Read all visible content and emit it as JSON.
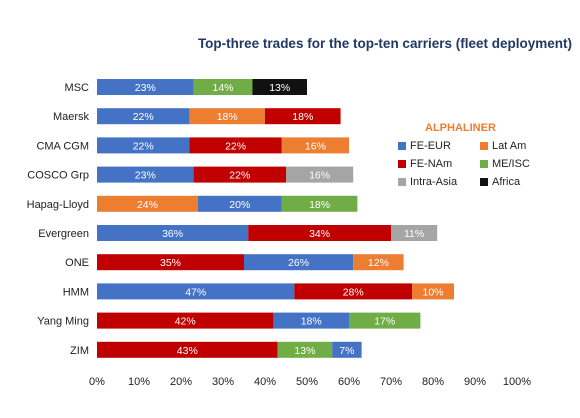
{
  "chart_data": {
    "type": "bar",
    "orientation": "horizontal",
    "stacked": true,
    "title": "Top-three trades for the top-ten carriers (fleet deployment)",
    "brand": "ALPHALINER",
    "categories": [
      "MSC",
      "Maersk",
      "CMA CGM",
      "COSCO Grp",
      "Hapag-Lloyd",
      "Evergreen",
      "ONE",
      "HMM",
      "Yang Ming",
      "ZIM"
    ],
    "series": [
      {
        "name": "FE-EUR",
        "color": "#4472c4"
      },
      {
        "name": "Lat Am",
        "color": "#ed7d31"
      },
      {
        "name": "FE-NAm",
        "color": "#c00000"
      },
      {
        "name": "ME/ISC",
        "color": "#70ad47"
      },
      {
        "name": "Intra-Asia",
        "color": "#a5a5a5"
      },
      {
        "name": "Africa",
        "color": "#111111"
      }
    ],
    "bars": [
      {
        "carrier": "MSC",
        "segments": [
          {
            "trade": "FE-EUR",
            "value": 23,
            "label": "23%"
          },
          {
            "trade": "ME/ISC",
            "value": 14,
            "label": "14%"
          },
          {
            "trade": "Africa",
            "value": 13,
            "label": "13%"
          }
        ]
      },
      {
        "carrier": "Maersk",
        "segments": [
          {
            "trade": "FE-EUR",
            "value": 22,
            "label": "22%"
          },
          {
            "trade": "Lat Am",
            "value": 18,
            "label": "18%"
          },
          {
            "trade": "FE-NAm",
            "value": 18,
            "label": "18%"
          }
        ]
      },
      {
        "carrier": "CMA CGM",
        "segments": [
          {
            "trade": "FE-EUR",
            "value": 22,
            "label": "22%"
          },
          {
            "trade": "FE-NAm",
            "value": 22,
            "label": "22%"
          },
          {
            "trade": "Lat Am",
            "value": 16,
            "label": "16%"
          }
        ]
      },
      {
        "carrier": "COSCO Grp",
        "segments": [
          {
            "trade": "FE-EUR",
            "value": 23,
            "label": "23%"
          },
          {
            "trade": "FE-NAm",
            "value": 22,
            "label": "22%"
          },
          {
            "trade": "Intra-Asia",
            "value": 16,
            "label": "16%"
          }
        ]
      },
      {
        "carrier": "Hapag-Lloyd",
        "segments": [
          {
            "trade": "Lat Am",
            "value": 24,
            "label": "24%"
          },
          {
            "trade": "FE-EUR",
            "value": 20,
            "label": "20%"
          },
          {
            "trade": "ME/ISC",
            "value": 18,
            "label": "18%"
          }
        ]
      },
      {
        "carrier": "Evergreen",
        "segments": [
          {
            "trade": "FE-EUR",
            "value": 36,
            "label": "36%"
          },
          {
            "trade": "FE-NAm",
            "value": 34,
            "label": "34%"
          },
          {
            "trade": "Intra-Asia",
            "value": 11,
            "label": "11%"
          }
        ]
      },
      {
        "carrier": "ONE",
        "segments": [
          {
            "trade": "FE-NAm",
            "value": 35,
            "label": "35%"
          },
          {
            "trade": "FE-EUR",
            "value": 26,
            "label": "26%"
          },
          {
            "trade": "Lat Am",
            "value": 12,
            "label": "12%"
          }
        ]
      },
      {
        "carrier": "HMM",
        "segments": [
          {
            "trade": "FE-EUR",
            "value": 47,
            "label": "47%"
          },
          {
            "trade": "FE-NAm",
            "value": 28,
            "label": "28%"
          },
          {
            "trade": "Lat Am",
            "value": 10,
            "label": "10%"
          }
        ]
      },
      {
        "carrier": "Yang Ming",
        "segments": [
          {
            "trade": "FE-NAm",
            "value": 42,
            "label": "42%"
          },
          {
            "trade": "FE-EUR",
            "value": 18,
            "label": "18%"
          },
          {
            "trade": "ME/ISC",
            "value": 17,
            "label": "17%"
          }
        ]
      },
      {
        "carrier": "ZIM",
        "segments": [
          {
            "trade": "FE-NAm",
            "value": 43,
            "label": "43%"
          },
          {
            "trade": "ME/ISC",
            "value": 13,
            "label": "13%"
          },
          {
            "trade": "FE-EUR",
            "value": 7,
            "label": "7%"
          }
        ]
      }
    ],
    "xticks": [
      "0%",
      "10%",
      "20%",
      "30%",
      "40%",
      "50%",
      "60%",
      "70%",
      "80%",
      "90%",
      "100%"
    ],
    "xlim": [
      0,
      100
    ],
    "grid": false,
    "legend_position": "right"
  }
}
